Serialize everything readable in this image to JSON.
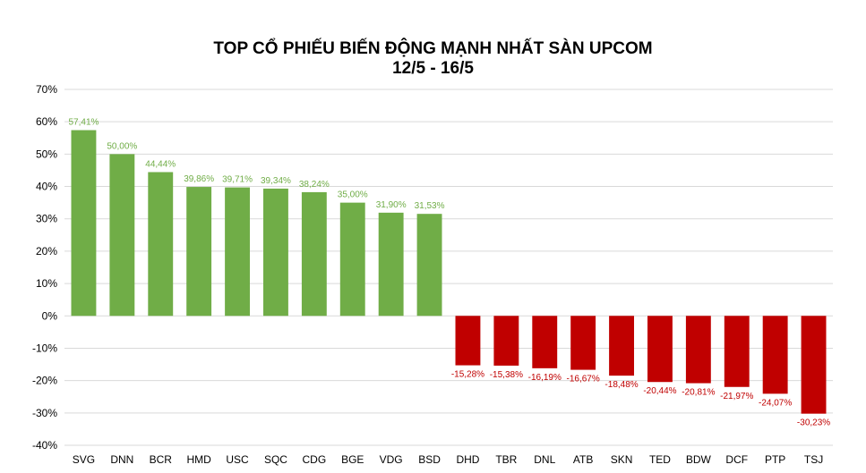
{
  "chart_data": {
    "type": "bar",
    "title": "TOP CỔ PHIẾU BIẾN ĐỘNG MẠNH NHẤT SÀN UPCOM",
    "subtitle": "12/5 - 16/5",
    "categories": [
      "SVG",
      "DNN",
      "BCR",
      "HMD",
      "USC",
      "SQC",
      "CDG",
      "BGE",
      "VDG",
      "BSD",
      "DHD",
      "TBR",
      "DNL",
      "ATB",
      "SKN",
      "TED",
      "BDW",
      "DCF",
      "PTP",
      "TSJ"
    ],
    "values": [
      57.41,
      50.0,
      44.44,
      39.86,
      39.71,
      39.34,
      38.24,
      35.0,
      31.9,
      31.53,
      -15.28,
      -15.38,
      -16.19,
      -16.67,
      -18.48,
      -20.44,
      -20.81,
      -21.97,
      -24.07,
      -30.23
    ],
    "data_labels": [
      "57,41%",
      "50,00%",
      "44,44%",
      "39,86%",
      "39,71%",
      "39,34%",
      "38,24%",
      "35,00%",
      "31,90%",
      "31,53%",
      "-15,28%",
      "-15,38%",
      "-16,19%",
      "-16,67%",
      "-18,48%",
      "-20,44%",
      "-20,81%",
      "-21,97%",
      "-24,07%",
      "-30,23%"
    ],
    "ylim": [
      -40,
      70
    ],
    "yticks": [
      70,
      60,
      50,
      40,
      30,
      20,
      10,
      0,
      -10,
      -20,
      -30,
      -40
    ],
    "ytick_labels": [
      "70%",
      "60%",
      "50%",
      "40%",
      "30%",
      "20%",
      "10%",
      "0%",
      "-10%",
      "-20%",
      "-30%",
      "-40%"
    ],
    "xlabel": "",
    "ylabel": "",
    "grid": true,
    "legend": "none",
    "colors": {
      "positive": "#70AD47",
      "negative": "#C00000",
      "positive_label": "#70AD47",
      "negative_label": "#C00000",
      "grid": "#D9D9D9",
      "axis_text": "#000000"
    }
  }
}
